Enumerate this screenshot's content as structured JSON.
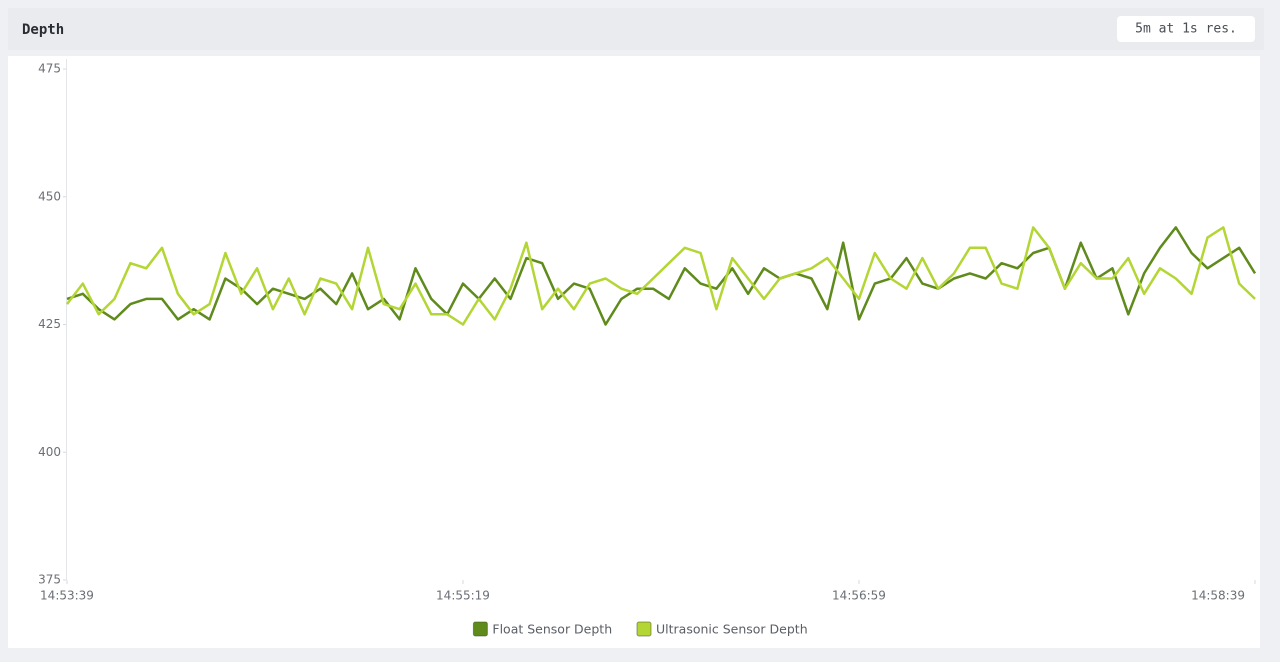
{
  "chart_data": {
    "type": "line",
    "title": "Depth",
    "badge": "5m at 1s res.",
    "x": [
      "14:53:39",
      "14:53:43",
      "14:53:47",
      "14:53:51",
      "14:53:55",
      "14:53:59",
      "14:54:03",
      "14:54:07",
      "14:54:11",
      "14:54:15",
      "14:54:19",
      "14:54:23",
      "14:54:27",
      "14:54:31",
      "14:54:35",
      "14:54:39",
      "14:54:43",
      "14:54:47",
      "14:54:51",
      "14:54:55",
      "14:54:59",
      "14:55:03",
      "14:55:07",
      "14:55:11",
      "14:55:15",
      "14:55:19",
      "14:55:23",
      "14:55:27",
      "14:55:31",
      "14:55:35",
      "14:55:39",
      "14:55:43",
      "14:55:47",
      "14:55:51",
      "14:55:55",
      "14:55:59",
      "14:56:03",
      "14:56:07",
      "14:56:11",
      "14:56:15",
      "14:56:19",
      "14:56:23",
      "14:56:27",
      "14:56:31",
      "14:56:35",
      "14:56:39",
      "14:56:43",
      "14:56:47",
      "14:56:51",
      "14:56:55",
      "14:56:59",
      "14:57:03",
      "14:57:07",
      "14:57:11",
      "14:57:15",
      "14:57:19",
      "14:57:23",
      "14:57:27",
      "14:57:31",
      "14:57:35",
      "14:57:39",
      "14:57:43",
      "14:57:47",
      "14:57:51",
      "14:57:55",
      "14:57:59",
      "14:58:03",
      "14:58:07",
      "14:58:11",
      "14:58:15",
      "14:58:19",
      "14:58:23",
      "14:58:27",
      "14:58:31",
      "14:58:35",
      "14:58:39"
    ],
    "series": [
      {
        "name": "Float Sensor Depth",
        "color": "#5f8a1c",
        "values": [
          430,
          431,
          428,
          426,
          429,
          430,
          430,
          426,
          428,
          426,
          434,
          432,
          429,
          432,
          431,
          430,
          432,
          429,
          435,
          428,
          430,
          426,
          436,
          430,
          427,
          433,
          430,
          434,
          430,
          438,
          437,
          430,
          433,
          432,
          425,
          430,
          432,
          432,
          430,
          436,
          433,
          432,
          436,
          431,
          436,
          434,
          435,
          434,
          428,
          441,
          426,
          433,
          434,
          438,
          433,
          432,
          434,
          435,
          434,
          437,
          436,
          439,
          440,
          432,
          441,
          434,
          436,
          427,
          435,
          440,
          444,
          439,
          436,
          438,
          440,
          435
        ]
      },
      {
        "name": "Ultrasonic Sensor Depth",
        "color": "#b3d634",
        "values": [
          429,
          433,
          427,
          430,
          437,
          436,
          440,
          431,
          427,
          429,
          439,
          431,
          436,
          428,
          434,
          427,
          434,
          433,
          428,
          440,
          429,
          428,
          433,
          427,
          427,
          425,
          430,
          426,
          432,
          441,
          428,
          432,
          428,
          433,
          434,
          432,
          431,
          434,
          437,
          440,
          439,
          428,
          438,
          434,
          430,
          434,
          435,
          436,
          438,
          434,
          430,
          439,
          434,
          432,
          438,
          432,
          435,
          440,
          440,
          433,
          432,
          444,
          440,
          432,
          437,
          434,
          434,
          438,
          431,
          436,
          434,
          431,
          442,
          444,
          433,
          430
        ]
      }
    ],
    "xlim": [
      "14:53:39",
      "14:58:39"
    ],
    "xticks": [
      "14:53:39",
      "14:55:19",
      "14:56:59",
      "14:58:39"
    ],
    "ylim": [
      375,
      475
    ],
    "yticks": [
      375,
      400,
      425,
      450,
      475
    ],
    "legend": "bottom"
  }
}
